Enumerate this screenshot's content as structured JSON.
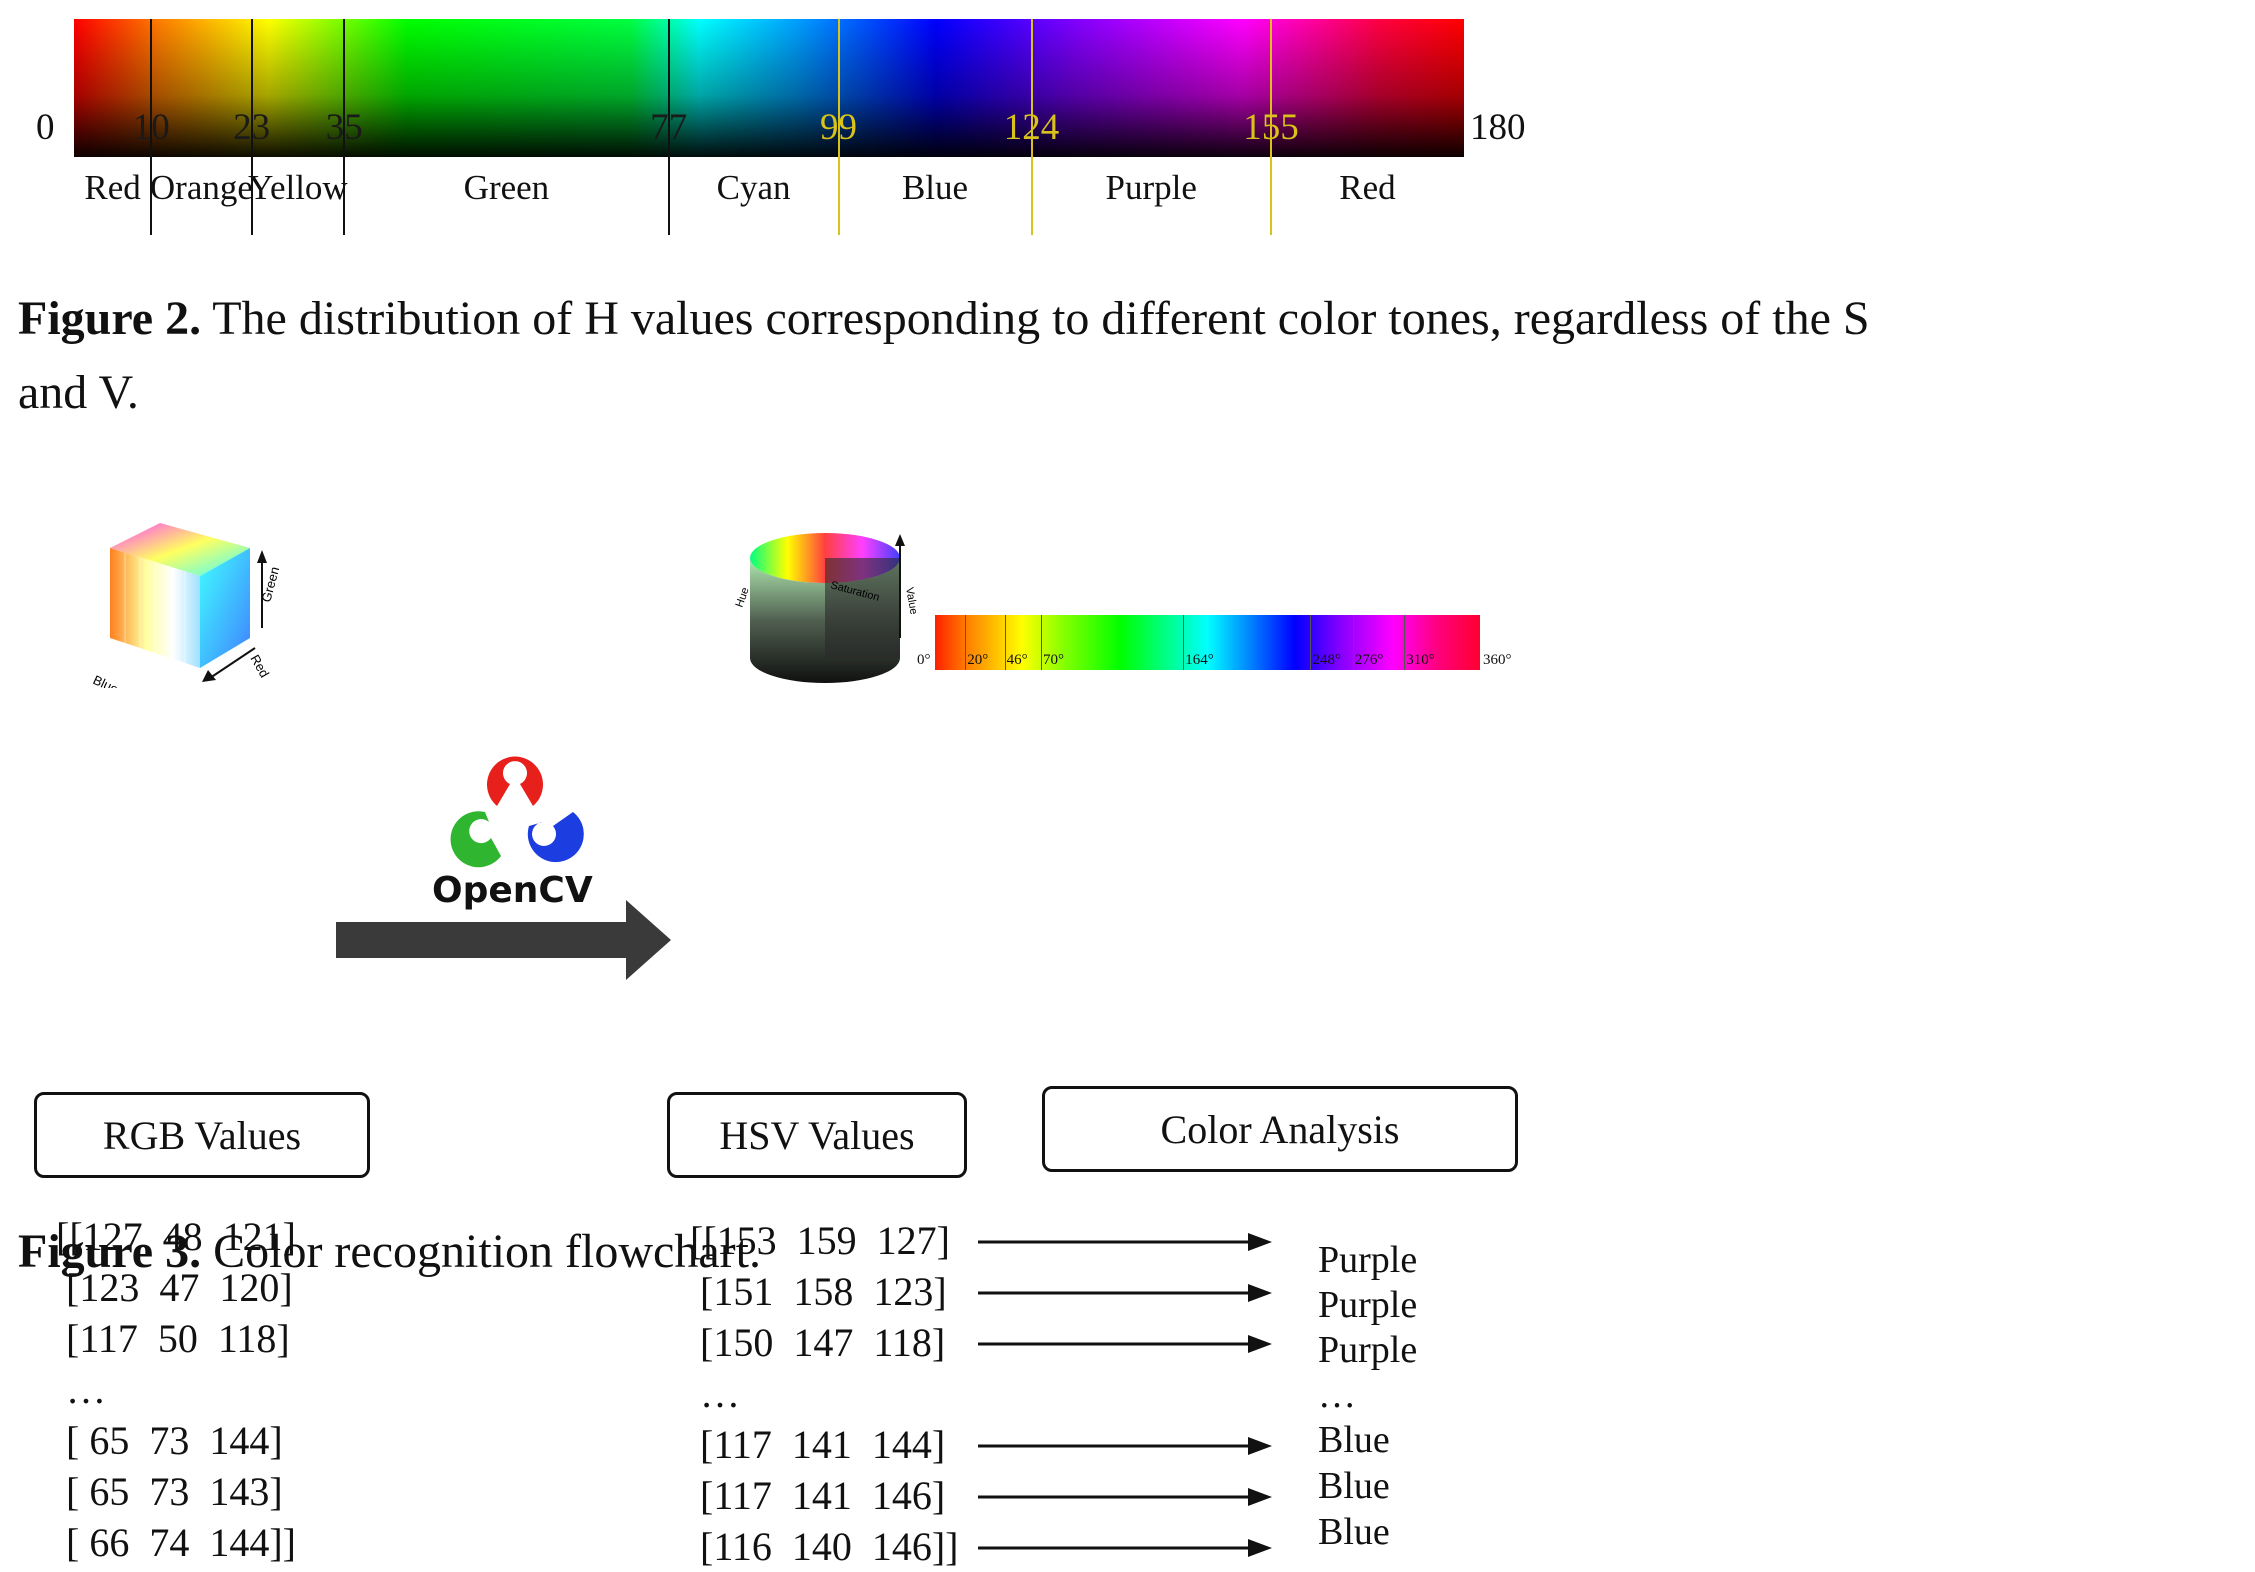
{
  "figure2": {
    "axis_start": "0",
    "axis_end": "180",
    "ticks": [
      {
        "value": 10,
        "label": "10",
        "color": "#111111"
      },
      {
        "value": 23,
        "label": "23",
        "color": "#111111"
      },
      {
        "value": 35,
        "label": "35",
        "color": "#111111"
      },
      {
        "value": 77,
        "label": "77",
        "color": "#111111"
      },
      {
        "value": 99,
        "label": "99",
        "color": "#d9c21a"
      },
      {
        "value": 124,
        "label": "124",
        "color": "#d9c21a"
      },
      {
        "value": 155,
        "label": "155",
        "color": "#d9c21a"
      }
    ],
    "bands": [
      {
        "label": "Red",
        "from": 0,
        "to": 10
      },
      {
        "label": "Orange",
        "from": 10,
        "to": 23
      },
      {
        "label": "Yellow",
        "from": 23,
        "to": 35
      },
      {
        "label": "Green",
        "from": 35,
        "to": 77
      },
      {
        "label": "Cyan",
        "from": 77,
        "to": 99
      },
      {
        "label": "Blue",
        "from": 99,
        "to": 124
      },
      {
        "label": "Purple",
        "from": 124,
        "to": 155
      },
      {
        "label": "Red",
        "from": 155,
        "to": 180
      }
    ],
    "caption_label": "Figure 2.",
    "caption_text": "The distribution of H values corresponding to different color tones, regardless of the S",
    "caption_text_line2": "and V."
  },
  "figure3": {
    "rgb_cube_labels": {
      "green": "Green",
      "red": "Red",
      "blue": "Blue"
    },
    "hsv_cylinder_labels": {
      "saturation": "Saturation",
      "value": "Value",
      "hue": "Hue"
    },
    "hue_degree_ticks": [
      "0°",
      "20°",
      "46°",
      "70°",
      "164°",
      "248°",
      "276°",
      "310°",
      "360°"
    ],
    "rgb_rows": [
      "[[127  48  121]",
      " [123  47  120]",
      " [117  50  118]",
      " …",
      " [ 65  73  144]",
      " [ 65  73  143]",
      " [ 66  74  144]]"
    ],
    "hsv_rows": [
      "[[153  159  127]",
      " [151  158  123]",
      " [150  147  118]",
      " …",
      " [117  141  144]",
      " [117  141  146]",
      " [116  140  146]]"
    ],
    "color_results": [
      "Purple",
      "Purple",
      "Purple",
      "…",
      "Blue",
      "Blue",
      "Blue"
    ],
    "opencv_label": "OpenCV",
    "box_rgb": "RGB Values",
    "box_hsv": "HSV Values",
    "box_analysis": "Color Analysis",
    "caption_label": "Figure 3.",
    "caption_text": "Color recognition flowchart."
  }
}
